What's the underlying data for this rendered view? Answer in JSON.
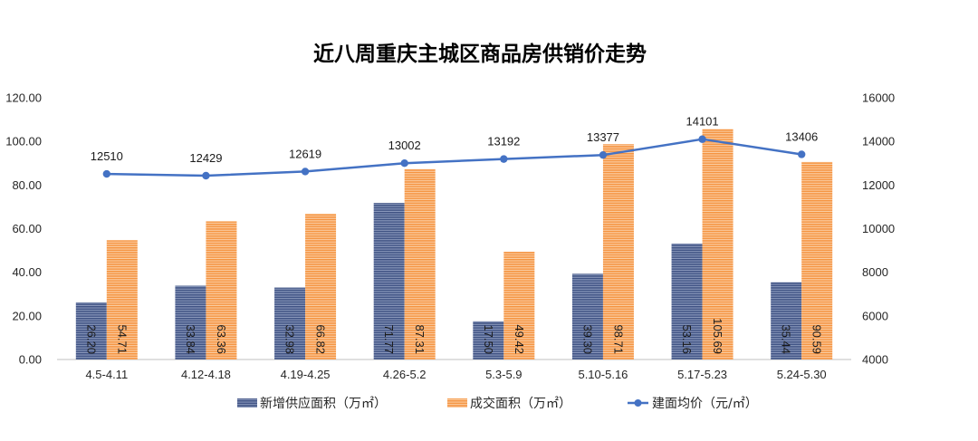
{
  "chart_data": {
    "type": "bar",
    "title": "近八周重庆主城区商品房供销价走势",
    "categories": [
      "4.5-4.11",
      "4.12-4.18",
      "4.19-4.25",
      "4.26-5.2",
      "5.3-5.9",
      "5.10-5.16",
      "5.17-5.23",
      "5.24-5.30"
    ],
    "series": [
      {
        "name": "新增供应面积（万㎡）",
        "type": "bar",
        "yaxis": 1,
        "values": [
          26.2,
          33.84,
          32.98,
          71.77,
          17.5,
          39.3,
          53.16,
          35.44
        ],
        "color": "#3F5283",
        "stripe_color": "#8D9BBE"
      },
      {
        "name": "成交面积（万㎡）",
        "type": "bar",
        "yaxis": 1,
        "values": [
          54.71,
          63.36,
          66.82,
          87.31,
          49.42,
          98.71,
          105.69,
          90.59
        ],
        "color": "#F5933F",
        "stripe_color": "#FBD0A8"
      },
      {
        "name": "建面均价（元/㎡）",
        "type": "line",
        "yaxis": 2,
        "values": [
          12510,
          12429,
          12619,
          13002,
          13192,
          13377,
          14101,
          13406
        ],
        "color": "#4472C4"
      }
    ],
    "ylim": [
      0,
      120
    ],
    "y_ticks": [
      0,
      20,
      40,
      60,
      80,
      100,
      120
    ],
    "y2lim": [
      4000,
      16000
    ],
    "y2_ticks": [
      4000,
      6000,
      8000,
      10000,
      12000,
      14000,
      16000
    ],
    "grid": false,
    "legend": "bottom",
    "data_labels": true
  }
}
